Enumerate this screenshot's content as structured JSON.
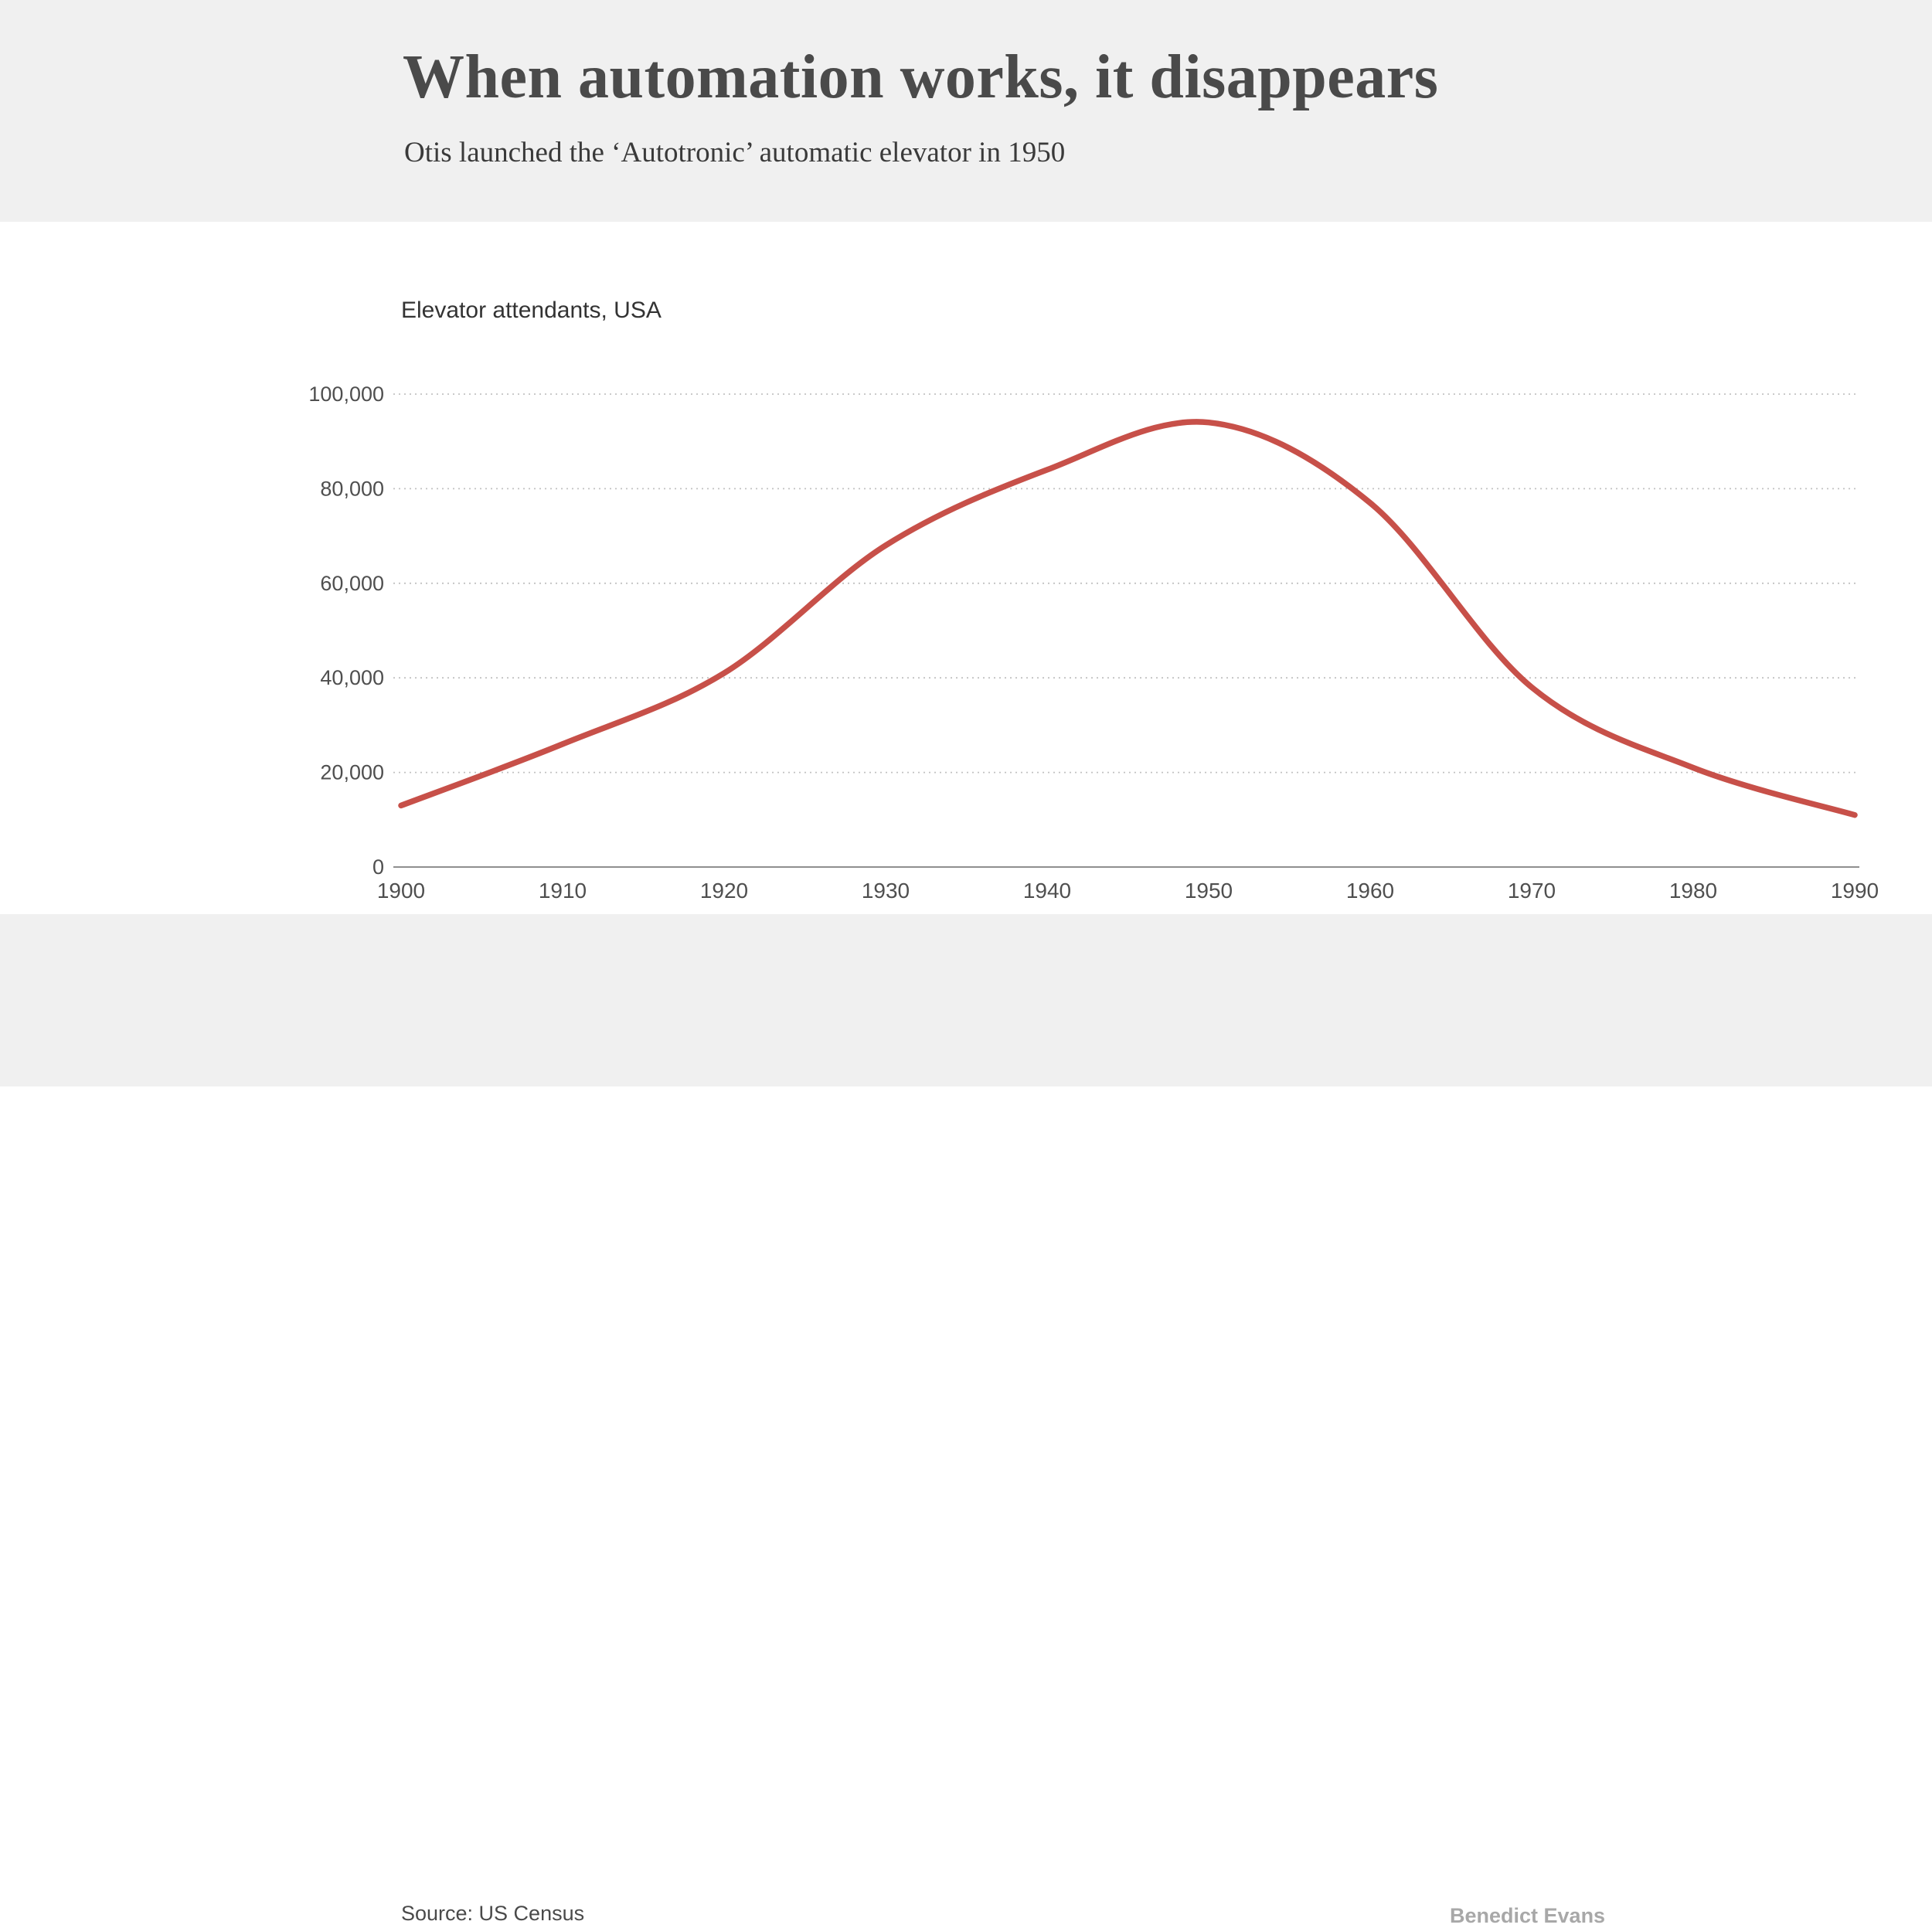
{
  "header": {
    "title": "When automation works, it disappears",
    "subtitle": "Otis launched the ‘Autotronic’ automatic elevator in 1950"
  },
  "footer": {
    "source": "Source: US Census",
    "credit": "Benedict Evans"
  },
  "colors": {
    "band_background": "#f0f0f0",
    "chart_background": "#ffffff",
    "line": "#c75049",
    "gridline": "#c2c2c2",
    "axis": "#8f8f8f",
    "tick_text": "#4f4f4f"
  },
  "chart_data": {
    "type": "line",
    "title": "Elevator attendants, USA",
    "x": [
      1900,
      1910,
      1920,
      1930,
      1940,
      1950,
      1960,
      1970,
      1980,
      1990
    ],
    "series": [
      {
        "name": "Elevator attendants, USA",
        "values": [
          13000,
          26000,
          41000,
          68000,
          84000,
          94000,
          77000,
          38000,
          21000,
          11000
        ]
      }
    ],
    "xlabel": "",
    "ylabel": "",
    "xlim": [
      1900,
      1990
    ],
    "ylim": [
      0,
      100000
    ],
    "xticks": [
      1900,
      1910,
      1920,
      1930,
      1940,
      1950,
      1960,
      1970,
      1980,
      1990
    ],
    "xtick_labels": [
      "1900",
      "1910",
      "1920",
      "1930",
      "1940",
      "1950",
      "1960",
      "1970",
      "1980",
      "1990"
    ],
    "yticks": [
      0,
      20000,
      40000,
      60000,
      80000,
      100000
    ],
    "ytick_labels": [
      "0",
      "20,000",
      "40,000",
      "60,000",
      "80,000",
      "100,000"
    ],
    "grid": "horizontal-dotted",
    "legend": "none",
    "annotations": []
  }
}
